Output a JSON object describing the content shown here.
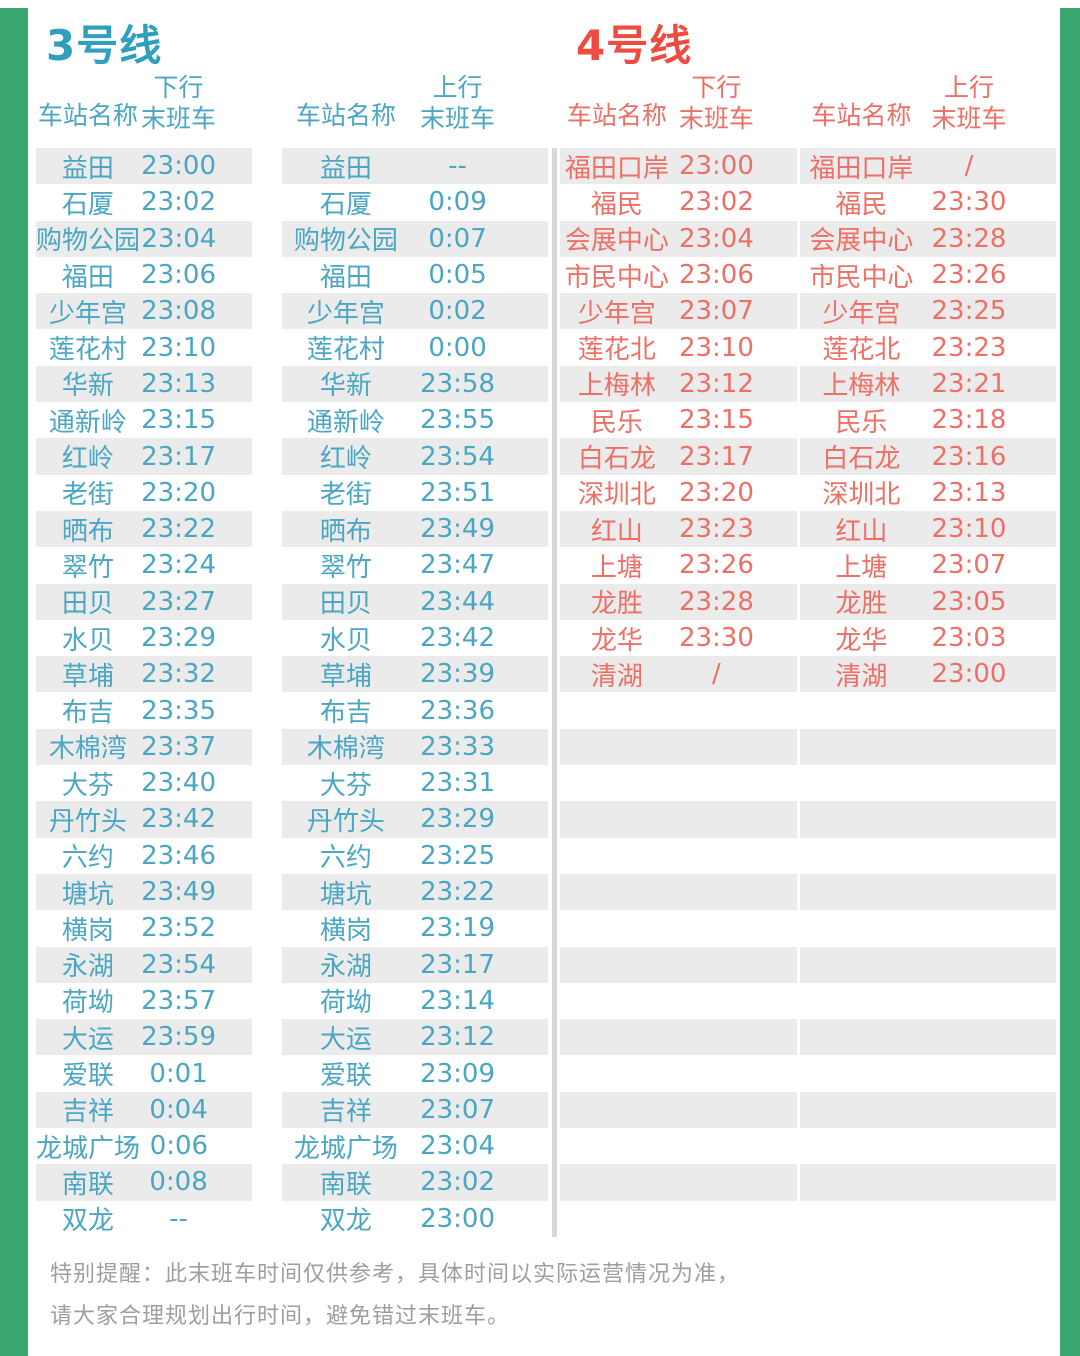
{
  "colors": {
    "green": "#3aa76f",
    "line3_title": "#2f9fbe",
    "line3_text": "#4aa6c3",
    "line4_title": "#ee4b41",
    "line4_text": "#ee6f66",
    "stripe": "#ebebeb",
    "divider": "#d8d8d8",
    "note": "#9e9e9e"
  },
  "lines": [
    {
      "title": "3号线",
      "tables": [
        {
          "station_header": "车站名称",
          "direction_header": "下行",
          "last_train_header": "末班车",
          "rows": [
            {
              "station": "益田",
              "time": "23:00"
            },
            {
              "station": "石厦",
              "time": "23:02"
            },
            {
              "station": "购物公园",
              "time": "23:04"
            },
            {
              "station": "福田",
              "time": "23:06"
            },
            {
              "station": "少年宫",
              "time": "23:08"
            },
            {
              "station": "莲花村",
              "time": "23:10"
            },
            {
              "station": "华新",
              "time": "23:13"
            },
            {
              "station": "通新岭",
              "time": "23:15"
            },
            {
              "station": "红岭",
              "time": "23:17"
            },
            {
              "station": "老街",
              "time": "23:20"
            },
            {
              "station": "晒布",
              "time": "23:22"
            },
            {
              "station": "翠竹",
              "time": "23:24"
            },
            {
              "station": "田贝",
              "time": "23:27"
            },
            {
              "station": "水贝",
              "time": "23:29"
            },
            {
              "station": "草埔",
              "time": "23:32"
            },
            {
              "station": "布吉",
              "time": "23:35"
            },
            {
              "station": "木棉湾",
              "time": "23:37"
            },
            {
              "station": "大芬",
              "time": "23:40"
            },
            {
              "station": "丹竹头",
              "time": "23:42"
            },
            {
              "station": "六约",
              "time": "23:46"
            },
            {
              "station": "塘坑",
              "time": "23:49"
            },
            {
              "station": "横岗",
              "time": "23:52"
            },
            {
              "station": "永湖",
              "time": "23:54"
            },
            {
              "station": "荷坳",
              "time": "23:57"
            },
            {
              "station": "大运",
              "time": "23:59"
            },
            {
              "station": "爱联",
              "time": "0:01"
            },
            {
              "station": "吉祥",
              "time": "0:04"
            },
            {
              "station": "龙城广场",
              "time": "0:06"
            },
            {
              "station": "南联",
              "time": "0:08"
            },
            {
              "station": "双龙",
              "time": "--"
            }
          ]
        },
        {
          "station_header": "车站名称",
          "direction_header": "上行",
          "last_train_header": "末班车",
          "rows": [
            {
              "station": "益田",
              "time": "--"
            },
            {
              "station": "石厦",
              "time": "0:09"
            },
            {
              "station": "购物公园",
              "time": "0:07"
            },
            {
              "station": "福田",
              "time": "0:05"
            },
            {
              "station": "少年宫",
              "time": "0:02"
            },
            {
              "station": "莲花村",
              "time": "0:00"
            },
            {
              "station": "华新",
              "time": "23:58"
            },
            {
              "station": "通新岭",
              "time": "23:55"
            },
            {
              "station": "红岭",
              "time": "23:54"
            },
            {
              "station": "老街",
              "time": "23:51"
            },
            {
              "station": "晒布",
              "time": "23:49"
            },
            {
              "station": "翠竹",
              "time": "23:47"
            },
            {
              "station": "田贝",
              "time": "23:44"
            },
            {
              "station": "水贝",
              "time": "23:42"
            },
            {
              "station": "草埔",
              "time": "23:39"
            },
            {
              "station": "布吉",
              "time": "23:36"
            },
            {
              "station": "木棉湾",
              "time": "23:33"
            },
            {
              "station": "大芬",
              "time": "23:31"
            },
            {
              "station": "丹竹头",
              "time": "23:29"
            },
            {
              "station": "六约",
              "time": "23:25"
            },
            {
              "station": "塘坑",
              "time": "23:22"
            },
            {
              "station": "横岗",
              "time": "23:19"
            },
            {
              "station": "永湖",
              "time": "23:17"
            },
            {
              "station": "荷坳",
              "time": "23:14"
            },
            {
              "station": "大运",
              "time": "23:12"
            },
            {
              "station": "爱联",
              "time": "23:09"
            },
            {
              "station": "吉祥",
              "time": "23:07"
            },
            {
              "station": "龙城广场",
              "time": "23:04"
            },
            {
              "station": "南联",
              "time": "23:02"
            },
            {
              "station": "双龙",
              "time": "23:00"
            }
          ]
        }
      ]
    },
    {
      "title": "4号线",
      "tables": [
        {
          "station_header": "车站名称",
          "direction_header": "下行",
          "last_train_header": "末班车",
          "rows": [
            {
              "station": "福田口岸",
              "time": "23:00"
            },
            {
              "station": "福民",
              "time": "23:02"
            },
            {
              "station": "会展中心",
              "time": "23:04"
            },
            {
              "station": "市民中心",
              "time": "23:06"
            },
            {
              "station": "少年宫",
              "time": "23:07"
            },
            {
              "station": "莲花北",
              "time": "23:10"
            },
            {
              "station": "上梅林",
              "time": "23:12"
            },
            {
              "station": "民乐",
              "time": "23:15"
            },
            {
              "station": "白石龙",
              "time": "23:17"
            },
            {
              "station": "深圳北",
              "time": "23:20"
            },
            {
              "station": "红山",
              "time": "23:23"
            },
            {
              "station": "上塘",
              "time": "23:26"
            },
            {
              "station": "龙胜",
              "time": "23:28"
            },
            {
              "station": "龙华",
              "time": "23:30"
            },
            {
              "station": "清湖",
              "time": "/"
            }
          ]
        },
        {
          "station_header": "车站名称",
          "direction_header": "上行",
          "last_train_header": "末班车",
          "rows": [
            {
              "station": "福田口岸",
              "time": "/"
            },
            {
              "station": "福民",
              "time": "23:30"
            },
            {
              "station": "会展中心",
              "time": "23:28"
            },
            {
              "station": "市民中心",
              "time": "23:26"
            },
            {
              "station": "少年宫",
              "time": "23:25"
            },
            {
              "station": "莲花北",
              "time": "23:23"
            },
            {
              "station": "上梅林",
              "time": "23:21"
            },
            {
              "station": "民乐",
              "time": "23:18"
            },
            {
              "station": "白石龙",
              "time": "23:16"
            },
            {
              "station": "深圳北",
              "time": "23:13"
            },
            {
              "station": "红山",
              "time": "23:10"
            },
            {
              "station": "上塘",
              "time": "23:07"
            },
            {
              "station": "龙胜",
              "time": "23:05"
            },
            {
              "station": "龙华",
              "time": "23:03"
            },
            {
              "station": "清湖",
              "time": "23:00"
            }
          ]
        }
      ]
    }
  ],
  "note": {
    "line1": "特别提醒：此末班车时间仅供参考，具体时间以实际运营情况为准，",
    "line2": "请大家合理规划出行时间，避免错过末班车。"
  }
}
